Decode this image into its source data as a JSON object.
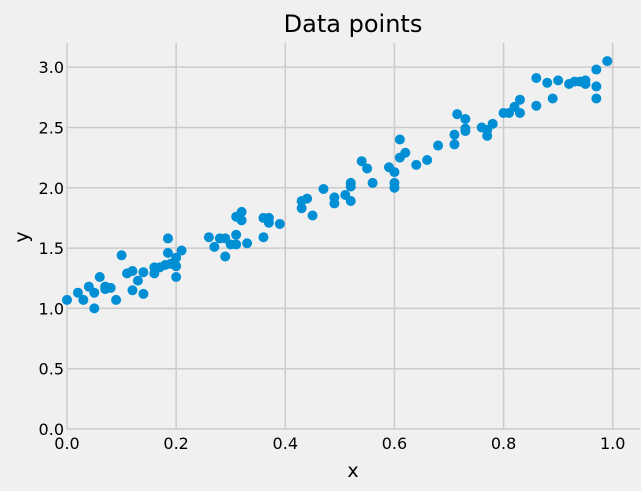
{
  "chart_data": {
    "type": "scatter",
    "title": "Data points",
    "xlabel": "x",
    "ylabel": "y",
    "xlim": [
      0.0,
      1.05
    ],
    "ylim": [
      0.0,
      3.2
    ],
    "x_ticks": [
      "0.0",
      "0.2",
      "0.4",
      "0.6",
      "0.8",
      "1.0"
    ],
    "y_ticks": [
      "0.0",
      "0.5",
      "1.0",
      "1.5",
      "2.0",
      "2.5",
      "3.0"
    ],
    "grid": true,
    "colors": {
      "background": "#f0f0f0",
      "grid": "#cbcbcb",
      "marker": "#008fd5"
    },
    "points": [
      [
        0.0,
        1.07
      ],
      [
        0.02,
        1.13
      ],
      [
        0.03,
        1.07
      ],
      [
        0.04,
        1.18
      ],
      [
        0.05,
        1.13
      ],
      [
        0.05,
        1.0
      ],
      [
        0.06,
        1.26
      ],
      [
        0.07,
        1.18
      ],
      [
        0.07,
        1.16
      ],
      [
        0.08,
        1.17
      ],
      [
        0.09,
        1.07
      ],
      [
        0.1,
        1.44
      ],
      [
        0.11,
        1.29
      ],
      [
        0.12,
        1.15
      ],
      [
        0.12,
        1.31
      ],
      [
        0.13,
        1.23
      ],
      [
        0.14,
        1.3
      ],
      [
        0.14,
        1.12
      ],
      [
        0.16,
        1.34
      ],
      [
        0.16,
        1.29
      ],
      [
        0.17,
        1.34
      ],
      [
        0.18,
        1.36
      ],
      [
        0.185,
        1.58
      ],
      [
        0.185,
        1.46
      ],
      [
        0.19,
        1.37
      ],
      [
        0.2,
        1.42
      ],
      [
        0.2,
        1.35
      ],
      [
        0.2,
        1.26
      ],
      [
        0.21,
        1.48
      ],
      [
        0.26,
        1.59
      ],
      [
        0.27,
        1.51
      ],
      [
        0.28,
        1.58
      ],
      [
        0.29,
        1.43
      ],
      [
        0.29,
        1.58
      ],
      [
        0.3,
        1.53
      ],
      [
        0.31,
        1.61
      ],
      [
        0.31,
        1.53
      ],
      [
        0.31,
        1.76
      ],
      [
        0.32,
        1.8
      ],
      [
        0.32,
        1.73
      ],
      [
        0.33,
        1.54
      ],
      [
        0.36,
        1.59
      ],
      [
        0.36,
        1.75
      ],
      [
        0.37,
        1.71
      ],
      [
        0.37,
        1.75
      ],
      [
        0.39,
        1.7
      ],
      [
        0.43,
        1.89
      ],
      [
        0.43,
        1.83
      ],
      [
        0.44,
        1.91
      ],
      [
        0.45,
        1.77
      ],
      [
        0.47,
        1.99
      ],
      [
        0.49,
        1.92
      ],
      [
        0.49,
        1.87
      ],
      [
        0.51,
        1.94
      ],
      [
        0.52,
        1.89
      ],
      [
        0.52,
        2.04
      ],
      [
        0.52,
        2.01
      ],
      [
        0.54,
        2.22
      ],
      [
        0.55,
        2.16
      ],
      [
        0.56,
        2.04
      ],
      [
        0.59,
        2.17
      ],
      [
        0.6,
        2.13
      ],
      [
        0.6,
        2.04
      ],
      [
        0.6,
        2.0
      ],
      [
        0.61,
        2.4
      ],
      [
        0.61,
        2.25
      ],
      [
        0.62,
        2.29
      ],
      [
        0.64,
        2.19
      ],
      [
        0.66,
        2.23
      ],
      [
        0.68,
        2.35
      ],
      [
        0.71,
        2.44
      ],
      [
        0.71,
        2.36
      ],
      [
        0.715,
        2.61
      ],
      [
        0.73,
        2.57
      ],
      [
        0.73,
        2.49
      ],
      [
        0.73,
        2.47
      ],
      [
        0.76,
        2.5
      ],
      [
        0.77,
        2.48
      ],
      [
        0.77,
        2.43
      ],
      [
        0.78,
        2.53
      ],
      [
        0.8,
        2.62
      ],
      [
        0.81,
        2.62
      ],
      [
        0.82,
        2.67
      ],
      [
        0.83,
        2.73
      ],
      [
        0.83,
        2.62
      ],
      [
        0.86,
        2.91
      ],
      [
        0.86,
        2.68
      ],
      [
        0.88,
        2.87
      ],
      [
        0.89,
        2.74
      ],
      [
        0.9,
        2.89
      ],
      [
        0.92,
        2.86
      ],
      [
        0.93,
        2.88
      ],
      [
        0.94,
        2.88
      ],
      [
        0.95,
        2.89
      ],
      [
        0.95,
        2.86
      ],
      [
        0.97,
        2.98
      ],
      [
        0.97,
        2.84
      ],
      [
        0.97,
        2.74
      ],
      [
        0.99,
        3.05
      ]
    ]
  }
}
